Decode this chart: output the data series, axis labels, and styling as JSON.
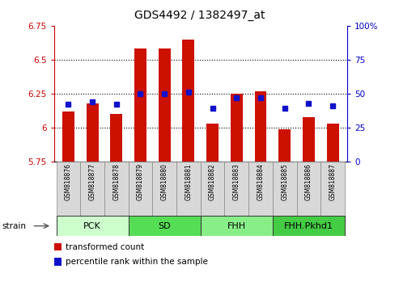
{
  "title": "GDS4492 / 1382497_at",
  "samples": [
    "GSM818876",
    "GSM818877",
    "GSM818878",
    "GSM818879",
    "GSM818880",
    "GSM818881",
    "GSM818882",
    "GSM818883",
    "GSM818884",
    "GSM818885",
    "GSM818886",
    "GSM818887"
  ],
  "red_values": [
    6.12,
    6.18,
    6.1,
    6.58,
    6.58,
    6.65,
    6.03,
    6.25,
    6.27,
    5.99,
    6.08,
    6.03
  ],
  "blue_values": [
    42,
    44,
    42,
    50,
    50,
    51,
    39,
    47,
    47,
    39,
    43,
    41
  ],
  "ylim_left": [
    5.75,
    6.75
  ],
  "ylim_right": [
    0,
    100
  ],
  "yticks_left": [
    5.75,
    6.0,
    6.25,
    6.5,
    6.75
  ],
  "yticks_right": [
    0,
    25,
    50,
    75,
    100
  ],
  "ytick_left_labels": [
    "5.75",
    "6",
    "6.25",
    "6.5",
    "6.75"
  ],
  "ytick_right_labels": [
    "0",
    "25",
    "50",
    "75",
    "100%"
  ],
  "groups": [
    {
      "label": "PCK",
      "start": 0,
      "end": 3,
      "color": "#ccffcc"
    },
    {
      "label": "SD",
      "start": 3,
      "end": 6,
      "color": "#55dd55"
    },
    {
      "label": "FHH",
      "start": 6,
      "end": 9,
      "color": "#88ee88"
    },
    {
      "label": "FHH.Pkhd1",
      "start": 9,
      "end": 12,
      "color": "#44cc44"
    }
  ],
  "bar_color": "#cc1100",
  "dot_color": "#1111cc",
  "bar_bottom": 5.75,
  "hgrid_values": [
    6.0,
    6.25,
    6.5
  ],
  "legend_items": [
    {
      "color": "#cc1100",
      "label": "transformed count"
    },
    {
      "color": "#1111cc",
      "label": "percentile rank within the sample"
    }
  ],
  "left_axis_color": "#cc0000",
  "right_axis_color": "#0000cc",
  "xtick_bg": "#d8d8d8",
  "strain_label": "strain"
}
